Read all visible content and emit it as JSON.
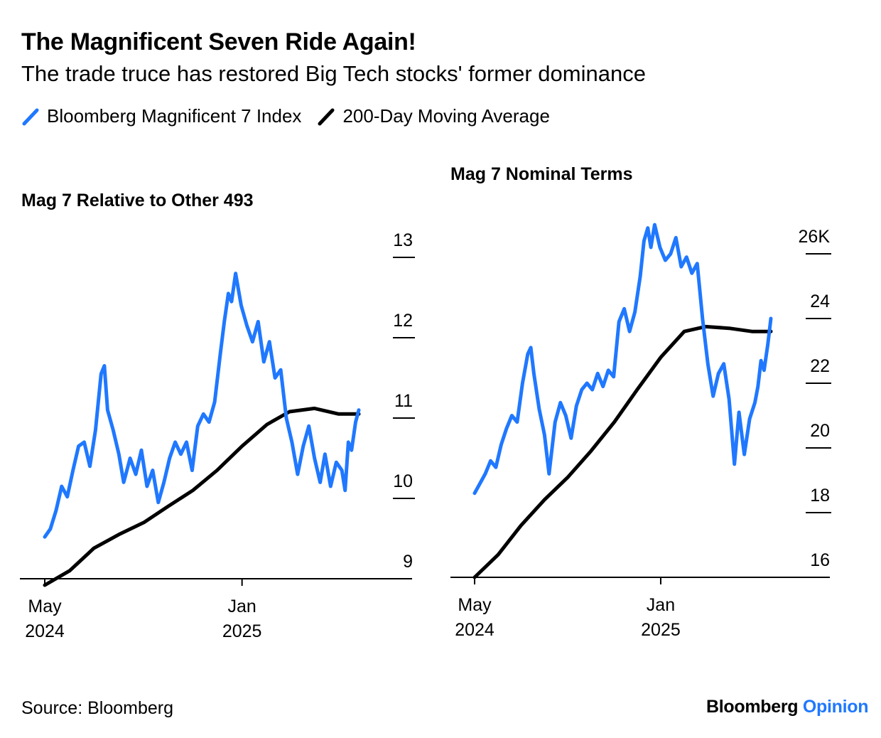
{
  "title": "The Magnificent Seven Ride Again!",
  "subtitle": "The trade truce has restored Big Tech stocks' former dominance",
  "legend": {
    "items": [
      {
        "label": "Bloomberg Magnificent 7 Index",
        "color": "#1f78ff"
      },
      {
        "label": "200-Day Moving Average",
        "color": "#000000"
      }
    ]
  },
  "source": "Source: Bloomberg",
  "brand": {
    "part1": "Bloomberg",
    "part2": "Opinion",
    "part2_color": "#1f78ff"
  },
  "chart_data": [
    {
      "type": "line",
      "title": "Mag 7 Relative to Other 493",
      "x_ticks": [
        {
          "date": "2024-05-01",
          "line1": "May",
          "line2": "2024"
        },
        {
          "date": "2025-01-01",
          "line1": "Jan",
          "line2": "2025"
        }
      ],
      "ylim": [
        9,
        13
      ],
      "y_ticks": [
        "9",
        "10",
        "11",
        "12",
        "13"
      ],
      "xlim": [
        "2024-04-20",
        "2025-06-30"
      ],
      "series": [
        {
          "name": "Bloomberg Magnificent 7 Index",
          "color": "#1f78ff",
          "points": [
            [
              "2024-05-01",
              9.52
            ],
            [
              "2024-05-08",
              9.62
            ],
            [
              "2024-05-15",
              9.85
            ],
            [
              "2024-05-22",
              10.15
            ],
            [
              "2024-05-29",
              10.02
            ],
            [
              "2024-06-05",
              10.35
            ],
            [
              "2024-06-12",
              10.65
            ],
            [
              "2024-06-19",
              10.7
            ],
            [
              "2024-06-26",
              10.4
            ],
            [
              "2024-07-03",
              10.85
            ],
            [
              "2024-07-10",
              11.55
            ],
            [
              "2024-07-14",
              11.65
            ],
            [
              "2024-07-18",
              11.1
            ],
            [
              "2024-07-25",
              10.85
            ],
            [
              "2024-08-01",
              10.55
            ],
            [
              "2024-08-07",
              10.2
            ],
            [
              "2024-08-15",
              10.5
            ],
            [
              "2024-08-22",
              10.3
            ],
            [
              "2024-08-29",
              10.6
            ],
            [
              "2024-09-05",
              10.15
            ],
            [
              "2024-09-12",
              10.35
            ],
            [
              "2024-09-19",
              9.95
            ],
            [
              "2024-09-26",
              10.2
            ],
            [
              "2024-10-03",
              10.5
            ],
            [
              "2024-10-10",
              10.7
            ],
            [
              "2024-10-17",
              10.55
            ],
            [
              "2024-10-24",
              10.7
            ],
            [
              "2024-10-31",
              10.35
            ],
            [
              "2024-11-07",
              10.9
            ],
            [
              "2024-11-14",
              11.05
            ],
            [
              "2024-11-21",
              10.95
            ],
            [
              "2024-11-28",
              11.2
            ],
            [
              "2024-12-05",
              11.8
            ],
            [
              "2024-12-10",
              12.2
            ],
            [
              "2024-12-15",
              12.55
            ],
            [
              "2024-12-19",
              12.45
            ],
            [
              "2024-12-24",
              12.8
            ],
            [
              "2024-12-31",
              12.4
            ],
            [
              "2025-01-07",
              12.15
            ],
            [
              "2025-01-14",
              11.95
            ],
            [
              "2025-01-21",
              12.2
            ],
            [
              "2025-01-28",
              11.7
            ],
            [
              "2025-02-04",
              11.95
            ],
            [
              "2025-02-11",
              11.5
            ],
            [
              "2025-02-18",
              11.6
            ],
            [
              "2025-02-25",
              11.0
            ],
            [
              "2025-03-04",
              10.7
            ],
            [
              "2025-03-11",
              10.3
            ],
            [
              "2025-03-18",
              10.65
            ],
            [
              "2025-03-25",
              10.9
            ],
            [
              "2025-04-01",
              10.5
            ],
            [
              "2025-04-08",
              10.2
            ],
            [
              "2025-04-14",
              10.55
            ],
            [
              "2025-04-21",
              10.15
            ],
            [
              "2025-04-28",
              10.45
            ],
            [
              "2025-05-05",
              10.35
            ],
            [
              "2025-05-09",
              10.1
            ],
            [
              "2025-05-13",
              10.7
            ],
            [
              "2025-05-17",
              10.6
            ],
            [
              "2025-05-22",
              10.95
            ],
            [
              "2025-05-26",
              11.1
            ]
          ]
        },
        {
          "name": "200-Day Moving Average",
          "color": "#000000",
          "points": [
            [
              "2024-05-01",
              8.92
            ],
            [
              "2024-06-01",
              9.1
            ],
            [
              "2024-07-01",
              9.38
            ],
            [
              "2024-08-01",
              9.55
            ],
            [
              "2024-09-01",
              9.7
            ],
            [
              "2024-10-01",
              9.9
            ],
            [
              "2024-11-01",
              10.1
            ],
            [
              "2024-12-01",
              10.35
            ],
            [
              "2025-01-01",
              10.65
            ],
            [
              "2025-02-01",
              10.92
            ],
            [
              "2025-03-01",
              11.08
            ],
            [
              "2025-04-01",
              11.12
            ],
            [
              "2025-05-01",
              11.05
            ],
            [
              "2025-05-26",
              11.05
            ]
          ]
        }
      ]
    },
    {
      "type": "line",
      "title": "Mag 7 Nominal Terms",
      "x_ticks": [
        {
          "date": "2024-05-01",
          "line1": "May",
          "line2": "2024"
        },
        {
          "date": "2025-01-01",
          "line1": "Jan",
          "line2": "2025"
        }
      ],
      "ylim": [
        16000,
        26000
      ],
      "y_ticks": [
        "16",
        "18",
        "20",
        "22",
        "24",
        "26K"
      ],
      "xlim": [
        "2024-04-20",
        "2025-07-15"
      ],
      "series": [
        {
          "name": "Bloomberg Magnificent 7 Index",
          "color": "#1f78ff",
          "points": [
            [
              "2024-05-01",
              18.6
            ],
            [
              "2024-05-08",
              18.9
            ],
            [
              "2024-05-15",
              19.2
            ],
            [
              "2024-05-22",
              19.6
            ],
            [
              "2024-05-29",
              19.4
            ],
            [
              "2024-06-05",
              20.1
            ],
            [
              "2024-06-12",
              20.6
            ],
            [
              "2024-06-19",
              21.0
            ],
            [
              "2024-06-26",
              20.8
            ],
            [
              "2024-07-03",
              22.0
            ],
            [
              "2024-07-10",
              22.9
            ],
            [
              "2024-07-14",
              23.1
            ],
            [
              "2024-07-18",
              22.3
            ],
            [
              "2024-07-25",
              21.2
            ],
            [
              "2024-08-01",
              20.4
            ],
            [
              "2024-08-07",
              19.2
            ],
            [
              "2024-08-15",
              20.8
            ],
            [
              "2024-08-22",
              21.4
            ],
            [
              "2024-08-29",
              21.0
            ],
            [
              "2024-09-05",
              20.3
            ],
            [
              "2024-09-12",
              21.3
            ],
            [
              "2024-09-19",
              21.8
            ],
            [
              "2024-09-26",
              22.0
            ],
            [
              "2024-10-03",
              21.8
            ],
            [
              "2024-10-10",
              22.3
            ],
            [
              "2024-10-17",
              21.9
            ],
            [
              "2024-10-24",
              22.4
            ],
            [
              "2024-10-31",
              22.2
            ],
            [
              "2024-11-07",
              23.9
            ],
            [
              "2024-11-14",
              24.3
            ],
            [
              "2024-11-21",
              23.6
            ],
            [
              "2024-11-28",
              24.2
            ],
            [
              "2024-12-05",
              25.3
            ],
            [
              "2024-12-10",
              26.4
            ],
            [
              "2024-12-15",
              26.8
            ],
            [
              "2024-12-19",
              26.2
            ],
            [
              "2024-12-24",
              26.9
            ],
            [
              "2024-12-31",
              26.2
            ],
            [
              "2025-01-07",
              25.8
            ],
            [
              "2025-01-14",
              26.0
            ],
            [
              "2025-01-21",
              26.5
            ],
            [
              "2025-01-28",
              25.6
            ],
            [
              "2025-02-04",
              25.9
            ],
            [
              "2025-02-11",
              25.4
            ],
            [
              "2025-02-18",
              25.7
            ],
            [
              "2025-02-25",
              24.0
            ],
            [
              "2025-03-04",
              22.6
            ],
            [
              "2025-03-11",
              21.6
            ],
            [
              "2025-03-18",
              22.3
            ],
            [
              "2025-03-25",
              22.6
            ],
            [
              "2025-04-01",
              21.5
            ],
            [
              "2025-04-08",
              19.5
            ],
            [
              "2025-04-14",
              21.1
            ],
            [
              "2025-04-21",
              19.8
            ],
            [
              "2025-04-28",
              20.9
            ],
            [
              "2025-05-05",
              21.4
            ],
            [
              "2025-05-09",
              21.9
            ],
            [
              "2025-05-13",
              22.7
            ],
            [
              "2025-05-17",
              22.4
            ],
            [
              "2025-05-22",
              23.2
            ],
            [
              "2025-05-26",
              24.0
            ]
          ]
        },
        {
          "name": "200-Day Moving Average",
          "color": "#000000",
          "points": [
            [
              "2024-05-01",
              16.0
            ],
            [
              "2024-06-01",
              16.7
            ],
            [
              "2024-07-01",
              17.6
            ],
            [
              "2024-08-01",
              18.4
            ],
            [
              "2024-09-01",
              19.1
            ],
            [
              "2024-10-01",
              19.9
            ],
            [
              "2024-11-01",
              20.8
            ],
            [
              "2024-12-01",
              21.8
            ],
            [
              "2025-01-01",
              22.8
            ],
            [
              "2025-02-01",
              23.6
            ],
            [
              "2025-03-01",
              23.75
            ],
            [
              "2025-04-01",
              23.7
            ],
            [
              "2025-05-01",
              23.6
            ],
            [
              "2025-05-26",
              23.6
            ]
          ]
        }
      ]
    }
  ]
}
